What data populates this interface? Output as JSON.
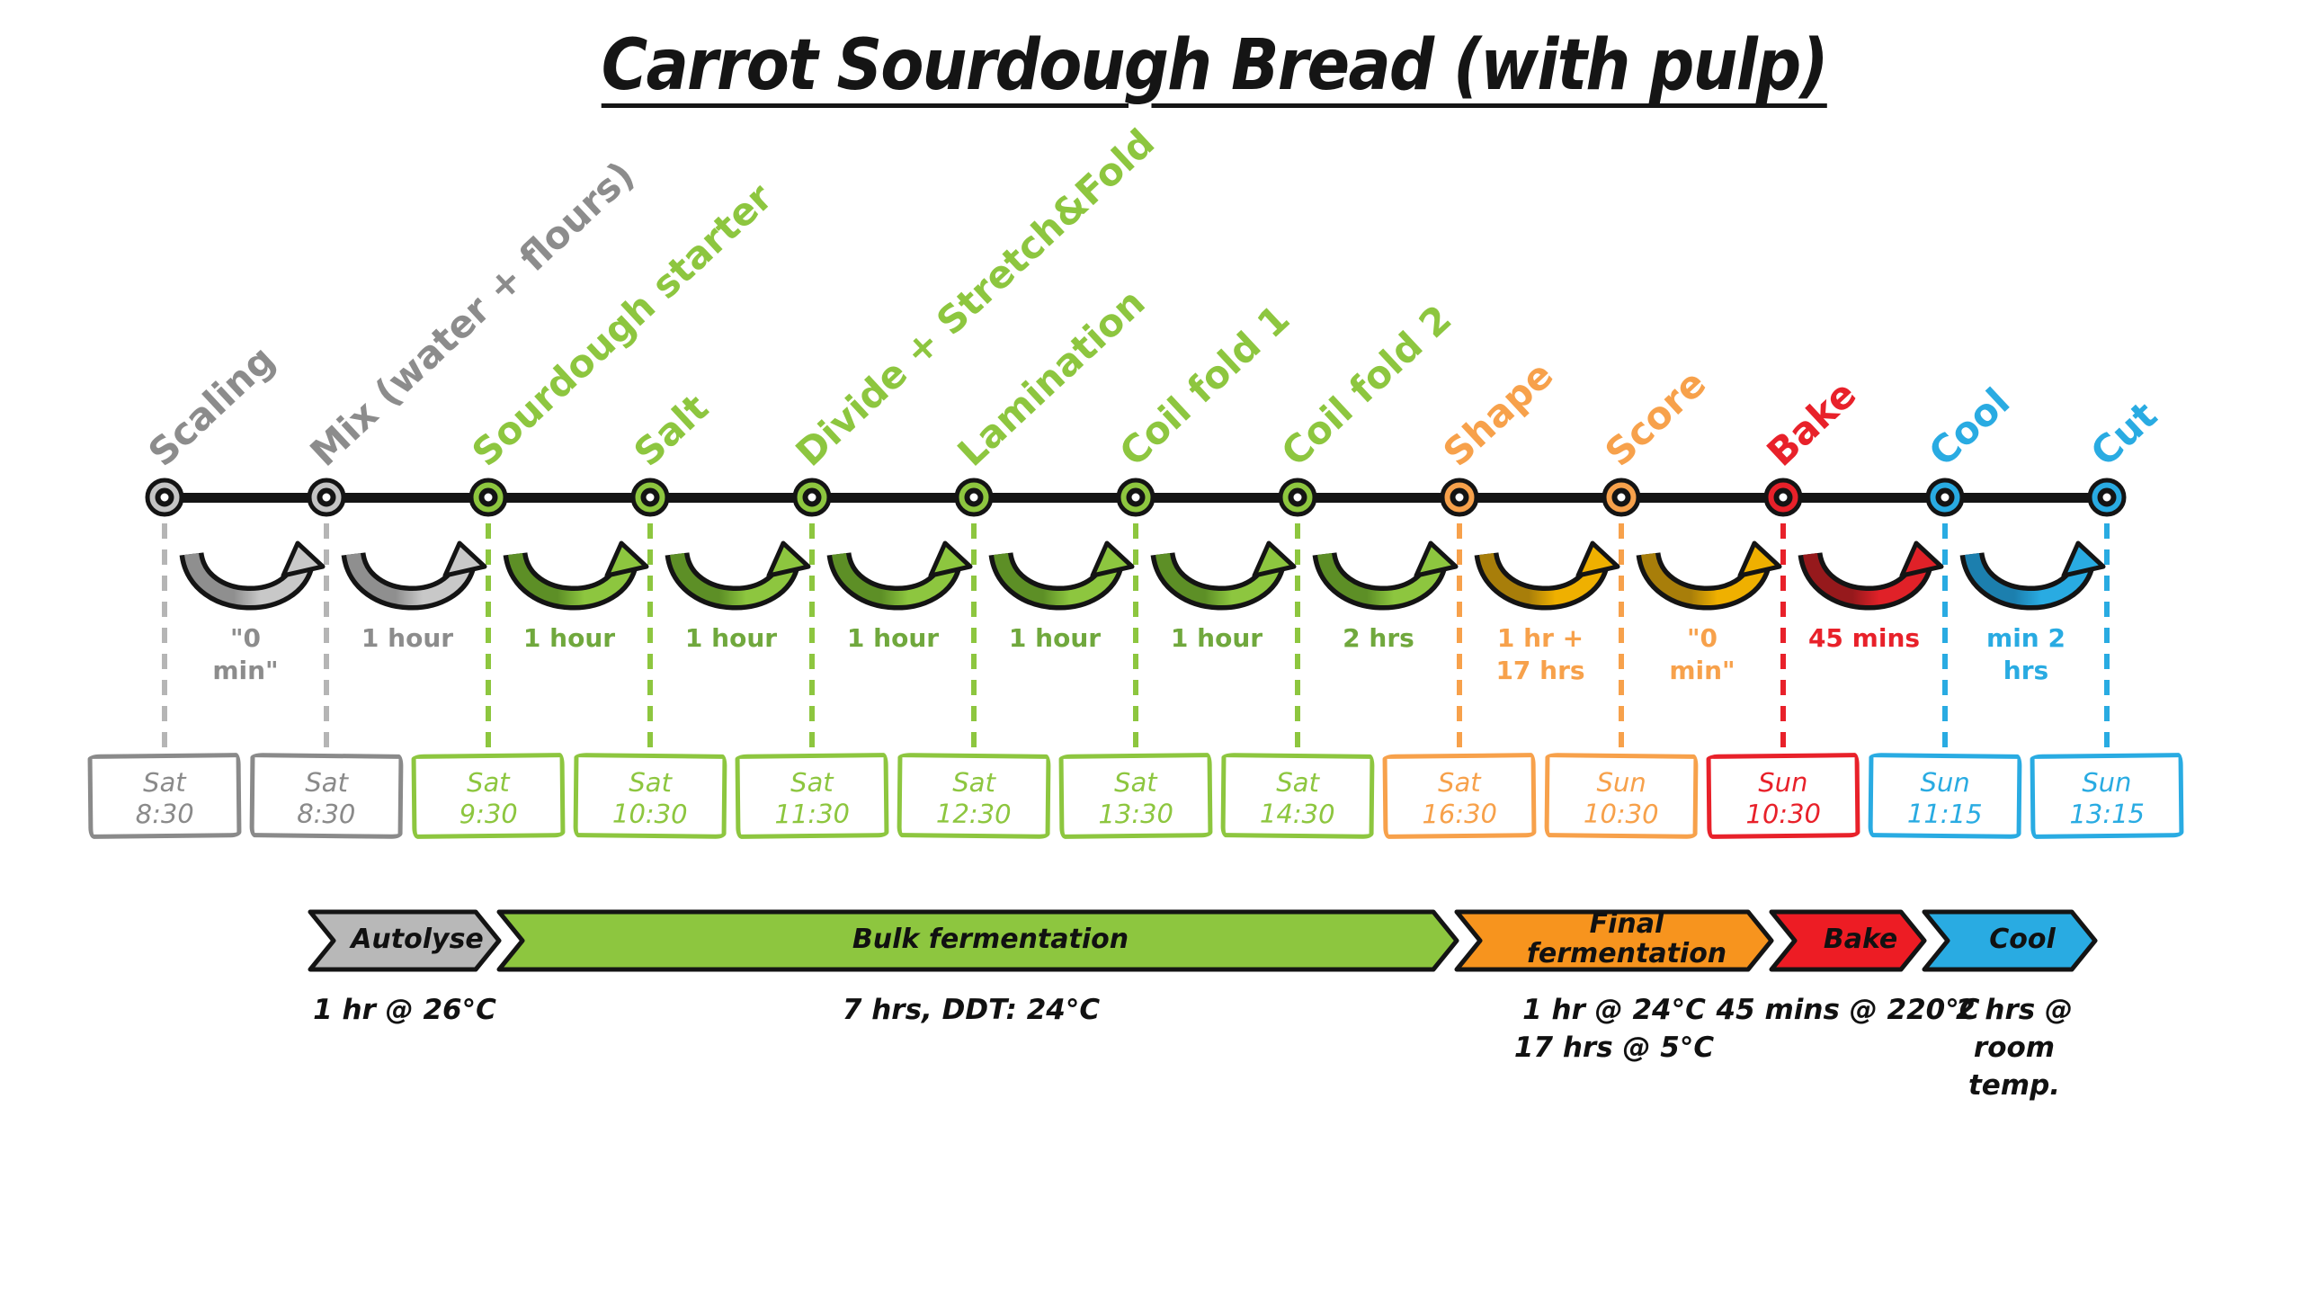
{
  "title": "Carrot Sourdough Bread (with pulp)",
  "palette": {
    "gray": {
      "label": "#8c8c8c",
      "node": "#c4c4c4",
      "box": "#8a8a8a",
      "dash": "#b5b5b5",
      "dur": "#8c8c8c",
      "arrowDark": "#8f8f8f",
      "arrowBright": "#c8c8c8",
      "phase": "#b8b8b8"
    },
    "green": {
      "label": "#8dc63f",
      "node": "#8dc63f",
      "box": "#8dc63f",
      "dash": "#8dc63f",
      "dur": "#70a83d",
      "arrowDark": "#5d8f26",
      "arrowBright": "#8dc63f",
      "phase": "#8dc63f"
    },
    "orange": {
      "label": "#f7a14b",
      "node": "#f7a14b",
      "box": "#f7a14b",
      "dash": "#f7a14b",
      "dur": "#f7a14b",
      "arrowDark": "#a87e0a",
      "arrowBright": "#efb000",
      "phase": "#f7941e"
    },
    "red": {
      "label": "#e8212a",
      "node": "#e8212a",
      "box": "#e8212a",
      "dash": "#e8212a",
      "dur": "#e8212a",
      "arrowDark": "#96191c",
      "arrowBright": "#e02128",
      "phase": "#ed1c24"
    },
    "blue": {
      "label": "#29abe2",
      "node": "#29abe2",
      "box": "#29abe2",
      "dash": "#29abe2",
      "dur": "#29abe2",
      "arrowDark": "#1c7fae",
      "arrowBright": "#29abe2",
      "phase": "#29abe2"
    }
  },
  "steps": [
    {
      "label": "Scaling",
      "color": "gray",
      "day": "Sat",
      "time": "8:30"
    },
    {
      "label": "Mix (water + flours)",
      "color": "gray",
      "day": "Sat",
      "time": "8:30"
    },
    {
      "label": "Sourdough starter",
      "color": "green",
      "day": "Sat",
      "time": "9:30"
    },
    {
      "label": "Salt",
      "color": "green",
      "day": "Sat",
      "time": "10:30"
    },
    {
      "label": "Divide + Stretch&Fold",
      "color": "green",
      "day": "Sat",
      "time": "11:30"
    },
    {
      "label": "Lamination",
      "color": "green",
      "day": "Sat",
      "time": "12:30"
    },
    {
      "label": "Coil fold 1",
      "color": "green",
      "day": "Sat",
      "time": "13:30"
    },
    {
      "label": "Coil fold 2",
      "color": "green",
      "day": "Sat",
      "time": "14:30"
    },
    {
      "label": "Shape",
      "color": "orange",
      "day": "Sat",
      "time": "16:30"
    },
    {
      "label": "Score",
      "color": "orange",
      "day": "Sun",
      "time": "10:30"
    },
    {
      "label": "Bake",
      "color": "red",
      "day": "Sun",
      "time": "10:30"
    },
    {
      "label": "Cool",
      "color": "blue",
      "day": "Sun",
      "time": "11:15"
    },
    {
      "label": "Cut",
      "color": "blue",
      "day": "Sun",
      "time": "13:15"
    }
  ],
  "intervals": [
    {
      "duration": "\"0\nmin\"",
      "color": "gray"
    },
    {
      "duration": "1 hour",
      "color": "gray"
    },
    {
      "duration": "1 hour",
      "color": "green"
    },
    {
      "duration": "1 hour",
      "color": "green"
    },
    {
      "duration": "1 hour",
      "color": "green"
    },
    {
      "duration": "1 hour",
      "color": "green"
    },
    {
      "duration": "1 hour",
      "color": "green"
    },
    {
      "duration": "2 hrs",
      "color": "green"
    },
    {
      "duration": "1 hr +\n17 hrs",
      "color": "orange"
    },
    {
      "duration": "\"0\nmin\"",
      "color": "orange"
    },
    {
      "duration": "45 mins",
      "color": "red"
    },
    {
      "duration": "min 2\nhrs",
      "color": "blue"
    }
  ],
  "phases": [
    {
      "label": "Autolyse",
      "detail": "1 hr @ 26°C",
      "color": "gray"
    },
    {
      "label": "Bulk fermentation",
      "detail": "7 hrs, DDT: 24°C",
      "color": "green"
    },
    {
      "label": "Final\nfermentation",
      "detail": "1 hr @ 24°C\n17 hrs @ 5°C",
      "color": "orange"
    },
    {
      "label": "Bake",
      "detail": "45 mins @ 220°C",
      "color": "red"
    },
    {
      "label": "Cool",
      "detail": "2 hrs @\nroom\ntemp.",
      "color": "blue"
    }
  ]
}
